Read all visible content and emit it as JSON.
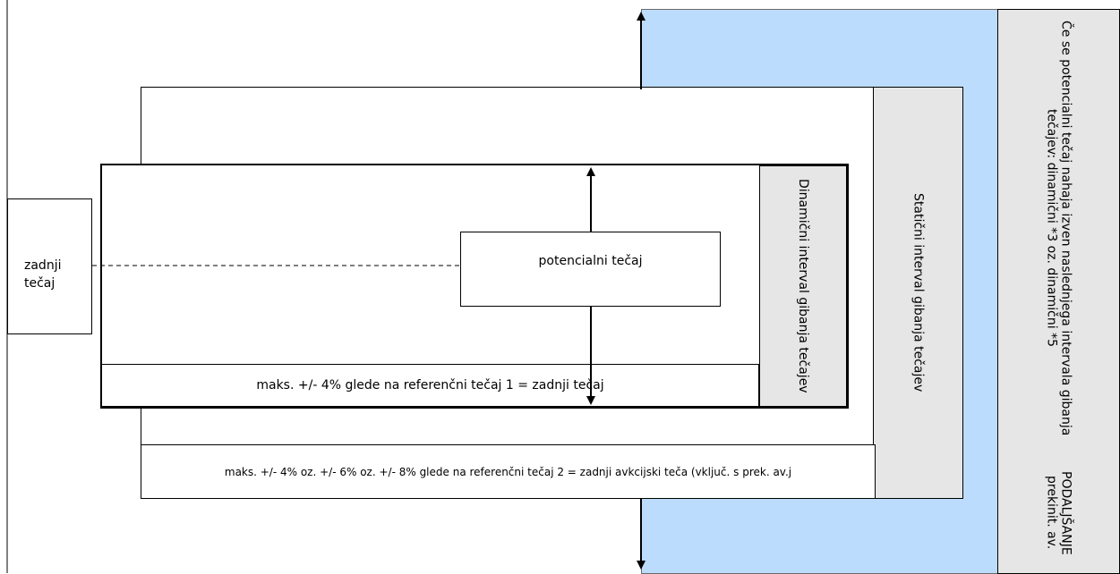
{
  "last_price": "zadnji\ntečaj",
  "potential_price": "potencialni tečaj",
  "dynamic_interval_label": "Dinamični interval gibanja tečajev",
  "static_interval_label": "Statični interval gibanja tečajev",
  "outside_interval_line1": "Če se potencialni tečaj nahaja izven naslednjega intervala gibanja tečajev: dinamični *3 oz. dinamični *5",
  "outside_interval_line2": "PODALJŠANJE prekinit. av.",
  "dynamic_limit": "maks. +/- 4% glede na referenčni tečaj 1 = zadnji tečaj",
  "static_limit": "maks. +/- 4% oz. +/- 6% oz. +/- 8% glede na referenčni tečaj 2 = zadnji avkcijski  teča (vključ. s prek. av.j",
  "colors": {
    "extended_zone": "#bcdcfd",
    "label_panel": "#e6e6e6"
  }
}
